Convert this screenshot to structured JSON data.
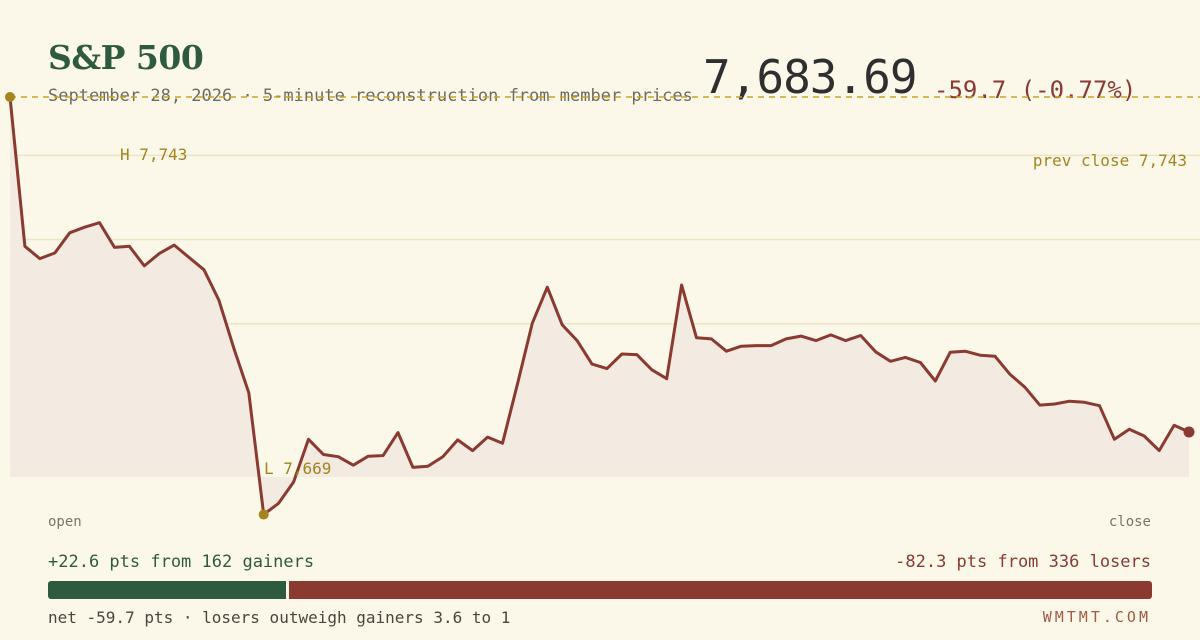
{
  "header": {
    "title": "S&P 500",
    "subtitle": "September 28, 2026 · 5-minute reconstruction from member prices",
    "price": "7,683.69",
    "change": "-59.7 (-0.77%)"
  },
  "colors": {
    "background": "#fbf8ea",
    "line": "#8a3a30",
    "fill": "#f3ebe1",
    "gridline": "#ece4c6",
    "reference": "#c9a227",
    "annotation": "#a3841f",
    "gainers": "#2e5a40",
    "losers": "#8a3a30"
  },
  "chart_data": {
    "type": "area",
    "title": "S&P 500",
    "xlabel": "",
    "ylabel": "",
    "x_start_label": "open",
    "x_end_label": "close",
    "ylim": [
      7665,
      7745
    ],
    "gridlines": [
      7733,
      7718,
      7703
    ],
    "grid": true,
    "reference_line": {
      "label": "prev close 7,743",
      "value": 7743.4
    },
    "high": {
      "label": "H 7,743",
      "index": 0,
      "value": 7743.4
    },
    "low": {
      "label": "L 7,669",
      "index": 17,
      "value": 7669.0
    },
    "series": [
      {
        "values": [
          7743.4,
          7716.8,
          7714.6,
          7715.6,
          7719.2,
          7720.2,
          7721.0,
          7716.6,
          7716.8,
          7713.3,
          7715.5,
          7717.0,
          7714.8,
          7712.6,
          7707.2,
          7698.6,
          7690.7,
          7669.0,
          7671.0,
          7674.8,
          7682.4,
          7679.7,
          7679.3,
          7677.8,
          7679.4,
          7679.5,
          7683.6,
          7677.4,
          7677.6,
          7679.3,
          7682.3,
          7680.4,
          7682.8,
          7681.7,
          7692.2,
          7703.1,
          7709.5,
          7702.8,
          7700.0,
          7695.8,
          7695.0,
          7697.6,
          7697.5,
          7694.8,
          7693.2,
          7709.9,
          7700.5,
          7700.3,
          7698.1,
          7699.0,
          7699.1,
          7699.1,
          7700.3,
          7700.8,
          7700.0,
          7701.0,
          7700.0,
          7700.9,
          7698.0,
          7696.3,
          7697.0,
          7696.1,
          7692.8,
          7697.9,
          7698.1,
          7697.4,
          7697.2,
          7694.0,
          7691.7,
          7688.5,
          7688.7,
          7689.2,
          7689.0,
          7688.4,
          7682.4,
          7684.2,
          7683.0,
          7680.4,
          7684.9,
          7683.7
        ]
      }
    ]
  },
  "footer": {
    "gainers_text": "+22.6 pts from 162 gainers",
    "losers_text": "-82.3 pts from 336 losers",
    "gainers_share": 0.2155,
    "net_text": "net -59.7 pts · losers outweigh gainers 3.6 to 1",
    "brand": "WMTMT.COM"
  }
}
